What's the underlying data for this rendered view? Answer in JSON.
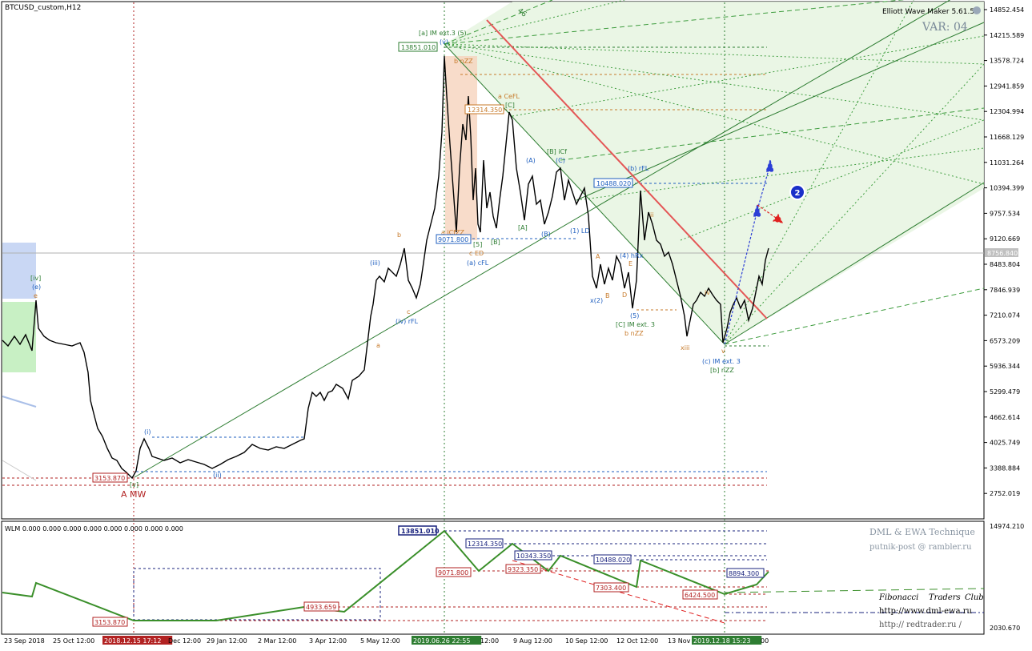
{
  "main_chart": {
    "symbol_title": "BTCUSD_custom,H12",
    "indicator_name": "Elliott Wave Maker 5.61.5",
    "var_label": "VAR: 04",
    "price_axis": [
      "14852.454",
      "14215.589",
      "13578.724",
      "12941.859",
      "12304.994",
      "11668.129",
      "11031.264",
      "10394.399",
      "9757.534",
      "9120.669",
      "8483.804",
      "7846.939",
      "7210.074",
      "6573.209",
      "5936.344",
      "5299.479",
      "4662.614",
      "4025.749",
      "3388.884",
      "2752.019"
    ],
    "current_price": "8756.840",
    "price_boxes": [
      {
        "text": "13851.010",
        "color": "#2e7d32"
      },
      {
        "text": "12314.350",
        "color": "#c77a2a"
      },
      {
        "text": "10488.020",
        "color": "#1f5fbf"
      },
      {
        "text": "9071.800",
        "color": "#1f5fbf"
      },
      {
        "text": "3153.870",
        "color": "#b22222"
      }
    ],
    "wave_labels": [
      {
        "text": "[a] IM ext.3 (5)",
        "color": "#2e7d32"
      },
      {
        "text": "(v)",
        "color": "#1f5fbf"
      },
      {
        "text": "b nZZ",
        "color": "#c77a2a"
      },
      {
        "text": "a CeFL",
        "color": "#c77a2a"
      },
      {
        "text": "[C]",
        "color": "#2e7d32"
      },
      {
        "text": "[B] iCf",
        "color": "#2e7d32"
      },
      {
        "text": "(C)",
        "color": "#1f5fbf"
      },
      {
        "text": "(A)",
        "color": "#1f5fbf"
      },
      {
        "text": "(b) rFL",
        "color": "#1f5fbf"
      },
      {
        "text": "(1) LD",
        "color": "#1f5fbf"
      },
      {
        "text": "(a) cFL",
        "color": "#1f5fbf"
      },
      {
        "text": "c ED",
        "color": "#c77a2a"
      },
      {
        "text": "a iCfZZ",
        "color": "#c77a2a"
      },
      {
        "text": "(iii)",
        "color": "#1f5fbf"
      },
      {
        "text": "(iv) rFL",
        "color": "#1f5fbf"
      },
      {
        "text": "(i)",
        "color": "#1f5fbf"
      },
      {
        "text": "(ii)",
        "color": "#1f5fbf"
      },
      {
        "text": "[v]",
        "color": "#2e7d32"
      },
      {
        "text": "A MW",
        "color": "#b22222"
      },
      {
        "text": "[iv]",
        "color": "#2e7d32"
      },
      {
        "text": "(e)",
        "color": "#1f5fbf"
      },
      {
        "text": "e",
        "color": "#c77a2a"
      },
      {
        "text": "b",
        "color": "#c77a2a"
      },
      {
        "text": "a",
        "color": "#c77a2a"
      },
      {
        "text": "c",
        "color": "#c77a2a"
      },
      {
        "text": "x(2)",
        "color": "#1f5fbf"
      },
      {
        "text": "[C] IM ext. 3",
        "color": "#2e7d32"
      },
      {
        "text": "b nZZ",
        "color": "#c77a2a"
      },
      {
        "text": "(4) hRx",
        "color": "#1f5fbf"
      },
      {
        "text": "(5)",
        "color": "#1f5fbf"
      },
      {
        "text": "ii",
        "color": "#c77a2a"
      },
      {
        "text": "iv",
        "color": "#c77a2a"
      },
      {
        "text": "xiii",
        "color": "#c77a2a"
      },
      {
        "text": "(c) IM ext. 3",
        "color": "#1f5fbf"
      },
      {
        "text": "[b] nZZ",
        "color": "#2e7d32"
      },
      {
        "text": "v",
        "color": "#c77a2a"
      },
      {
        "text": "A",
        "color": "#c77a2a"
      },
      {
        "text": "B",
        "color": "#c77a2a"
      },
      {
        "text": "D",
        "color": "#c77a2a"
      },
      {
        "text": "E",
        "color": "#c77a2a"
      },
      {
        "text": "[A]",
        "color": "#2e7d32"
      },
      {
        "text": "[B]",
        "color": "#2e7d32"
      },
      {
        "text": "(B)",
        "color": "#1f5fbf"
      },
      {
        "text": "[5]",
        "color": "#2e7d32"
      }
    ],
    "marker_number": "2",
    "line_labels": [
      "46"
    ]
  },
  "sub_chart": {
    "title": "WLM 0.000 0.000 0.000 0.000 0.000 0.000 0.000 0.000",
    "price_axis": [
      "14974.210",
      "2030.670"
    ],
    "watermark_lines": [
      "DML & EWA Technique",
      "putnik-post @ rambler.ru"
    ],
    "credits": [
      "Fibonacci",
      "Traders",
      "Club"
    ],
    "urls": [
      "http://www.dml-ewa.ru",
      "http:// redtrader.ru /"
    ],
    "price_boxes": [
      {
        "text": "13851.010",
        "color": "#1a237e"
      },
      {
        "text": "12314.350",
        "color": "#1a237e"
      },
      {
        "text": "10343.350",
        "color": "#1a237e"
      },
      {
        "text": "10488.020",
        "color": "#1a237e"
      },
      {
        "text": "8894.300",
        "color": "#1a237e"
      },
      {
        "text": "9071.800",
        "color": "#b22222"
      },
      {
        "text": "9323.350",
        "color": "#b22222"
      },
      {
        "text": "7303.400",
        "color": "#b22222"
      },
      {
        "text": "6424.500",
        "color": "#b22222"
      },
      {
        "text": "4933.659",
        "color": "#b22222"
      },
      {
        "text": "3153.870",
        "color": "#b22222"
      }
    ]
  },
  "time_axis": [
    "23 Sep 2018",
    "25 Oct 12:00",
    "2018.12.15 17:12",
    "Dec 12:00",
    "29 Jan 12:00",
    "2 Mar 12:00",
    "3 Apr 12:00",
    "5 May 12:00",
    "2019.06.26 22:55",
    "12:00",
    "9 Aug 12:00",
    "10 Sep 12:00",
    "12 Oct 12:00",
    "13 Nov",
    "2019.12.18 15:23",
    "00"
  ],
  "colors": {
    "candles": "#000000",
    "trend_green": "#2e7d32",
    "channel_fill": "#e8f5e3",
    "red_line": "#e45656",
    "blue_arrow": "#2c3fd6",
    "red_arrow": "#e02020",
    "wlm_line": "#3a8f2a"
  }
}
